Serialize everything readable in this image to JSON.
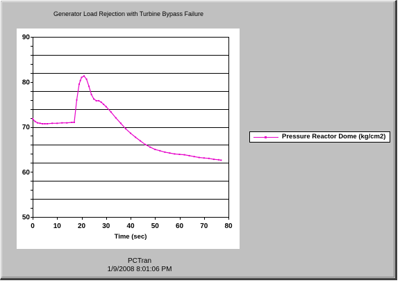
{
  "window": {
    "title": "Generator Load Rejection with Turbine Bypass Failure"
  },
  "footer": {
    "app": "PCTran",
    "timestamp": "1/9/2008 8:01:06 PM"
  },
  "colors": {
    "series": "#e600c8",
    "background": "#c0c0c0",
    "plot": "#ffffff"
  },
  "chart_data": {
    "type": "line",
    "title": "Generator Load Rejection with Turbine Bypass Failure",
    "xlabel": "Time (sec)",
    "ylabel": "",
    "xlim": [
      0,
      80
    ],
    "ylim": [
      50,
      90
    ],
    "x_ticks": [
      "0",
      "10",
      "20",
      "30",
      "40",
      "50",
      "60",
      "70",
      "80"
    ],
    "y_ticks": [
      "50",
      "60",
      "70",
      "80",
      "90"
    ],
    "grid": "horizontal",
    "legend_position": "right",
    "series": [
      {
        "name": "Pressure Reactor Dome (kg/cm2)",
        "x": [
          0,
          1,
          2,
          3,
          4,
          5,
          6,
          8,
          10,
          12,
          14,
          16,
          17,
          18,
          19,
          19.5,
          20,
          21,
          22,
          23,
          24,
          25,
          26,
          27,
          28,
          29,
          30,
          32,
          34,
          36,
          38,
          40,
          42,
          44,
          46,
          48,
          50,
          52,
          54,
          56,
          58,
          60,
          62,
          64,
          66,
          68,
          70,
          72,
          74,
          76,
          77
        ],
        "y": [
          71.8,
          71.2,
          70.9,
          70.8,
          70.7,
          70.7,
          70.7,
          70.8,
          70.8,
          70.9,
          70.9,
          71.0,
          71.0,
          76.0,
          79.5,
          80.3,
          81.0,
          81.3,
          80.6,
          79.0,
          77.2,
          76.2,
          75.8,
          75.8,
          75.5,
          75.0,
          74.5,
          73.3,
          72.0,
          70.8,
          69.6,
          68.6,
          67.7,
          66.9,
          66.1,
          65.5,
          65.0,
          64.7,
          64.4,
          64.2,
          64.0,
          63.9,
          63.8,
          63.6,
          63.4,
          63.2,
          63.1,
          63.0,
          62.8,
          62.7,
          62.6
        ]
      }
    ]
  }
}
